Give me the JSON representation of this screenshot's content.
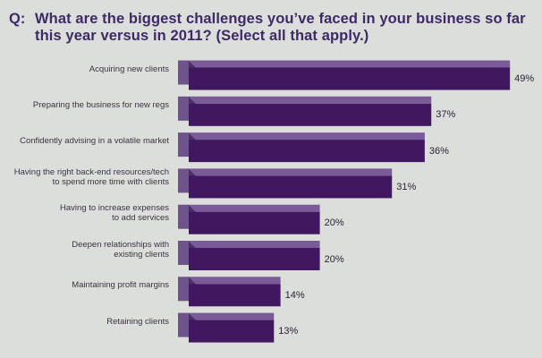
{
  "title": {
    "prefix": "Q:",
    "text": "What are the biggest challenges you’ve faced in your business so far this year versus in 2011? (Select all that apply.)"
  },
  "colors": {
    "bar_front": "#41175f",
    "bar_top": "#7a5a98",
    "bar_side": "#2a0c42",
    "tab": "#6e538c",
    "tab_dark": "#4a2f68",
    "background": "#dcdedb"
  },
  "chart_data": {
    "type": "bar",
    "orientation": "horizontal",
    "categories": [
      "Acquiring new clients",
      "Preparing the business for new regs",
      "Confidently advising in a volatile market",
      "Having the right back-end resources/tech to spend more time with clients",
      "Having to increase expenses to add services",
      "Deepen relationships with existing clients",
      "Maintaining profit margins",
      "Retaining clients"
    ],
    "category_lines": [
      [
        "Acquiring new clients"
      ],
      [
        "Preparing the business for new regs"
      ],
      [
        "Confidently advising in a volatile market"
      ],
      [
        "Having the right back-end resources/tech",
        "to spend more time with clients"
      ],
      [
        "Having to increase expenses",
        "to add services"
      ],
      [
        "Deepen relationships with",
        "existing clients"
      ],
      [
        "Maintaining profit margins"
      ],
      [
        "Retaining clients"
      ]
    ],
    "values": [
      49,
      37,
      36,
      31,
      20,
      20,
      14,
      13
    ],
    "value_labels": [
      "49%",
      "37%",
      "36%",
      "31%",
      "20%",
      "20%",
      "14%",
      "13%"
    ],
    "unit": "%",
    "xlim": [
      0,
      50
    ]
  }
}
